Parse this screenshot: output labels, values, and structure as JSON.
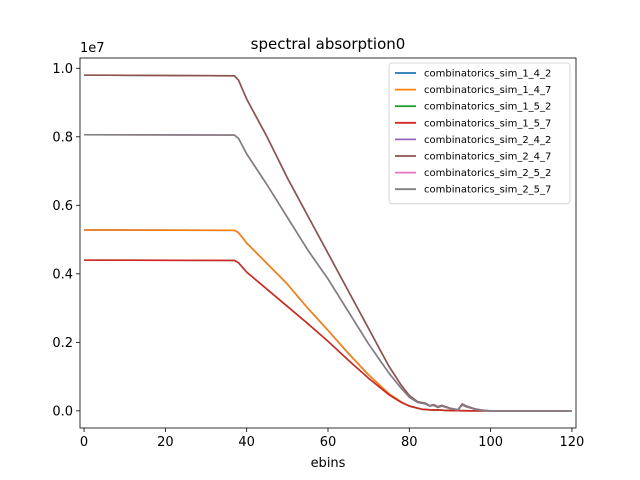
{
  "chart_data": {
    "type": "line",
    "title": "spectral absorption0",
    "xlabel": "ebins",
    "ylabel": "",
    "offset_label": "1e7",
    "xlim": [
      -1,
      121
    ],
    "ylim": [
      -0.05,
      1.03
    ],
    "xticks": [
      0,
      20,
      40,
      60,
      80,
      100,
      120
    ],
    "xtick_labels": [
      "0",
      "20",
      "40",
      "60",
      "80",
      "100",
      "120"
    ],
    "yticks": [
      0.0,
      0.2,
      0.4,
      0.6,
      0.8,
      1.0
    ],
    "ytick_labels": [
      "0.0",
      "0.2",
      "0.4",
      "0.6",
      "0.8",
      "1.0"
    ],
    "grid": false,
    "legend_position": "top-right",
    "series": [
      {
        "name": "combinatorics_sim_1_4_2",
        "color": "#1f77b4",
        "x": [
          0,
          37,
          38,
          40,
          45,
          50,
          55,
          60,
          65,
          70,
          75,
          78,
          80,
          83,
          85,
          88,
          90,
          92,
          95,
          100,
          120
        ],
        "y": [
          0.528,
          0.527,
          0.52,
          0.49,
          0.43,
          0.37,
          0.3,
          0.235,
          0.168,
          0.105,
          0.05,
          0.026,
          0.014,
          0.005,
          0.003,
          0.002,
          0.001,
          0.0005,
          0.0002,
          0.0,
          0.0
        ]
      },
      {
        "name": "combinatorics_sim_1_4_7",
        "color": "#ff7f0e",
        "x": [
          0,
          37,
          38,
          40,
          45,
          50,
          55,
          60,
          65,
          70,
          75,
          78,
          80,
          83,
          85,
          88,
          90,
          92,
          95,
          100,
          120
        ],
        "y": [
          0.528,
          0.527,
          0.52,
          0.49,
          0.43,
          0.37,
          0.3,
          0.235,
          0.168,
          0.105,
          0.05,
          0.026,
          0.014,
          0.005,
          0.003,
          0.002,
          0.001,
          0.0005,
          0.0002,
          0.0,
          0.0
        ]
      },
      {
        "name": "combinatorics_sim_1_5_2",
        "color": "#2ca02c",
        "x": [
          0,
          37,
          38,
          40,
          45,
          50,
          55,
          60,
          65,
          70,
          75,
          78,
          80,
          83,
          85,
          88,
          90,
          92,
          95,
          100,
          120
        ],
        "y": [
          0.44,
          0.439,
          0.432,
          0.405,
          0.355,
          0.305,
          0.255,
          0.203,
          0.148,
          0.095,
          0.047,
          0.025,
          0.014,
          0.005,
          0.003,
          0.002,
          0.001,
          0.0005,
          0.0002,
          0.0,
          0.0
        ]
      },
      {
        "name": "combinatorics_sim_1_5_7",
        "color": "#d62728",
        "x": [
          0,
          37,
          38,
          40,
          45,
          50,
          55,
          60,
          65,
          70,
          75,
          78,
          80,
          83,
          85,
          88,
          90,
          92,
          95,
          100,
          120
        ],
        "y": [
          0.44,
          0.439,
          0.432,
          0.405,
          0.355,
          0.305,
          0.255,
          0.203,
          0.148,
          0.095,
          0.047,
          0.025,
          0.014,
          0.005,
          0.003,
          0.002,
          0.001,
          0.0005,
          0.0002,
          0.0,
          0.0
        ]
      },
      {
        "name": "combinatorics_sim_2_4_2",
        "color": "#9467bd",
        "x": [
          0,
          37,
          38,
          40,
          45,
          50,
          55,
          60,
          65,
          70,
          75,
          78,
          80,
          82,
          84,
          85,
          86,
          87,
          88,
          90,
          92,
          93,
          94,
          96,
          98,
          100,
          120
        ],
        "y": [
          0.98,
          0.978,
          0.965,
          0.91,
          0.8,
          0.68,
          0.57,
          0.46,
          0.35,
          0.24,
          0.13,
          0.075,
          0.045,
          0.027,
          0.022,
          0.015,
          0.018,
          0.012,
          0.016,
          0.008,
          0.003,
          0.02,
          0.014,
          0.006,
          0.002,
          0.0,
          0.0
        ]
      },
      {
        "name": "combinatorics_sim_2_4_7",
        "color": "#8c564b",
        "x": [
          0,
          37,
          38,
          40,
          45,
          50,
          55,
          60,
          65,
          70,
          75,
          78,
          80,
          82,
          84,
          85,
          86,
          87,
          88,
          90,
          92,
          93,
          94,
          96,
          98,
          100,
          120
        ],
        "y": [
          0.98,
          0.978,
          0.965,
          0.91,
          0.8,
          0.68,
          0.57,
          0.46,
          0.35,
          0.24,
          0.13,
          0.075,
          0.045,
          0.027,
          0.022,
          0.015,
          0.018,
          0.012,
          0.016,
          0.008,
          0.003,
          0.02,
          0.014,
          0.006,
          0.002,
          0.0,
          0.0
        ]
      },
      {
        "name": "combinatorics_sim_2_5_2",
        "color": "#e377c2",
        "x": [
          0,
          37,
          38,
          40,
          45,
          50,
          55,
          60,
          65,
          70,
          75,
          78,
          80,
          82,
          84,
          85,
          86,
          87,
          88,
          90,
          92,
          93,
          94,
          96,
          98,
          100,
          120
        ],
        "y": [
          0.806,
          0.805,
          0.795,
          0.75,
          0.66,
          0.565,
          0.47,
          0.385,
          0.29,
          0.195,
          0.11,
          0.066,
          0.04,
          0.025,
          0.02,
          0.014,
          0.016,
          0.01,
          0.014,
          0.007,
          0.003,
          0.017,
          0.012,
          0.005,
          0.002,
          0.0,
          0.0
        ]
      },
      {
        "name": "combinatorics_sim_2_5_7",
        "color": "#7f7f7f",
        "x": [
          0,
          37,
          38,
          40,
          45,
          50,
          55,
          60,
          65,
          70,
          75,
          78,
          80,
          82,
          84,
          85,
          86,
          87,
          88,
          90,
          92,
          93,
          94,
          96,
          98,
          100,
          120
        ],
        "y": [
          0.806,
          0.805,
          0.795,
          0.75,
          0.66,
          0.565,
          0.47,
          0.385,
          0.29,
          0.195,
          0.11,
          0.066,
          0.04,
          0.025,
          0.02,
          0.014,
          0.016,
          0.01,
          0.014,
          0.007,
          0.003,
          0.017,
          0.012,
          0.005,
          0.002,
          0.0,
          0.0
        ]
      }
    ]
  }
}
